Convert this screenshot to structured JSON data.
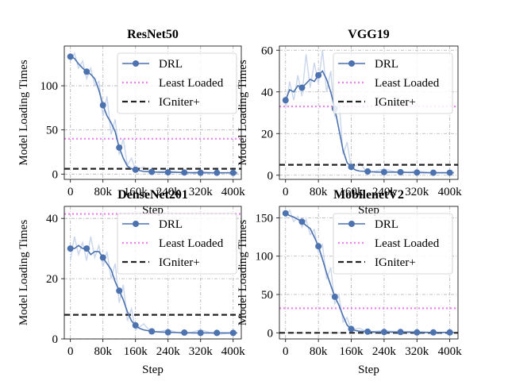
{
  "legend_labels": {
    "drl": "DRL",
    "least_loaded": "Least Loaded",
    "igniter": "IGniter+"
  },
  "colors": {
    "drl": "#4c72b0",
    "drl_raw": "#c9d6ec",
    "least_loaded": "#ee82ee",
    "igniter": "#222222",
    "grid": "#b0b0b0",
    "axis": "#000000"
  },
  "chart_data": [
    {
      "type": "line",
      "title": "ResNet50",
      "xlabel": "Step",
      "ylabel": "Model Loading Times",
      "xlim": [
        -15000,
        420000
      ],
      "ylim": [
        -6,
        145
      ],
      "xticks": [
        0,
        80000,
        160000,
        240000,
        320000,
        400000
      ],
      "xtick_labels": [
        "0",
        "80k",
        "160k",
        "240k",
        "320k",
        "400k"
      ],
      "yticks": [
        0,
        50,
        100
      ],
      "ytick_labels": [
        "0",
        "50",
        "100"
      ],
      "grid": true,
      "legend_position": "top-right",
      "series": [
        {
          "name": "DRL",
          "style": "line-with-circle-markers",
          "x": [
            0,
            10000,
            20000,
            30000,
            40000,
            50000,
            60000,
            70000,
            80000,
            90000,
            100000,
            110000,
            120000,
            130000,
            140000,
            150000,
            160000,
            170000,
            180000,
            200000,
            220000,
            240000,
            260000,
            280000,
            300000,
            320000,
            340000,
            360000,
            380000,
            400000,
            410000
          ],
          "y": [
            133,
            131,
            125,
            120,
            116,
            113,
            108,
            95,
            78,
            66,
            58,
            48,
            30,
            18,
            9,
            6,
            5,
            4,
            3,
            2.5,
            2,
            2,
            2,
            1.8,
            1.5,
            1.5,
            1.5,
            1.5,
            1.5,
            1.5,
            1.5
          ],
          "marker_x": [
            0,
            40000,
            80000,
            120000,
            160000,
            200000,
            240000,
            280000,
            320000,
            360000,
            400000
          ]
        },
        {
          "name": "DRL-raw",
          "style": "faint-noisy-line",
          "x": [
            0,
            10000,
            20000,
            30000,
            40000,
            50000,
            60000,
            70000,
            80000,
            90000,
            100000,
            110000,
            120000,
            130000,
            140000,
            150000,
            160000,
            180000,
            200000,
            240000,
            280000,
            320000,
            360000,
            400000
          ],
          "y": [
            128,
            137,
            120,
            128,
            108,
            120,
            100,
            105,
            65,
            88,
            45,
            62,
            22,
            40,
            10,
            18,
            5,
            8,
            2,
            4,
            1,
            3,
            1,
            2
          ]
        },
        {
          "name": "Least Loaded",
          "style": "dotted",
          "x": [
            -15000,
            420000
          ],
          "y": [
            40,
            40
          ]
        },
        {
          "name": "IGniter+",
          "style": "dashed",
          "x": [
            -15000,
            420000
          ],
          "y": [
            6,
            6
          ]
        }
      ]
    },
    {
      "type": "line",
      "title": "VGG19",
      "xlabel": "Step",
      "ylabel": "Model Loading Times",
      "xlim": [
        -15000,
        420000
      ],
      "ylim": [
        -2,
        62
      ],
      "xticks": [
        0,
        80000,
        160000,
        240000,
        320000,
        400000
      ],
      "xtick_labels": [
        "0",
        "80k",
        "160k",
        "240k",
        "320k",
        "400k"
      ],
      "yticks": [
        0,
        20,
        40,
        60
      ],
      "ytick_labels": [
        "0",
        "20",
        "40",
        "60"
      ],
      "grid": true,
      "legend_position": "top-right",
      "series": [
        {
          "name": "DRL",
          "style": "line-with-circle-markers",
          "x": [
            0,
            10000,
            20000,
            30000,
            40000,
            50000,
            60000,
            70000,
            80000,
            90000,
            100000,
            110000,
            120000,
            130000,
            140000,
            150000,
            160000,
            170000,
            180000,
            200000,
            220000,
            240000,
            260000,
            280000,
            300000,
            320000,
            340000,
            360000,
            380000,
            400000,
            410000
          ],
          "y": [
            36,
            41,
            40,
            43,
            42,
            44,
            46,
            45,
            48,
            50,
            46,
            40,
            32,
            22,
            12,
            6,
            4,
            2.5,
            2,
            1.8,
            1.5,
            1.5,
            1.5,
            1.5,
            1.3,
            1.3,
            1.2,
            1.2,
            1.2,
            1.2,
            1.2
          ],
          "marker_x": [
            0,
            40000,
            80000,
            120000,
            160000,
            200000,
            240000,
            280000,
            320000,
            360000,
            400000
          ]
        },
        {
          "name": "DRL-raw",
          "style": "faint-noisy-line",
          "x": [
            0,
            10000,
            20000,
            30000,
            40000,
            50000,
            60000,
            70000,
            80000,
            90000,
            100000,
            110000,
            120000,
            130000,
            140000,
            150000,
            160000,
            180000,
            200000,
            240000,
            280000,
            320000,
            360000,
            400000
          ],
          "y": [
            32,
            45,
            36,
            48,
            38,
            58,
            42,
            54,
            44,
            60,
            40,
            50,
            28,
            36,
            10,
            16,
            3,
            6,
            1,
            3,
            1,
            2,
            1,
            1
          ]
        },
        {
          "name": "Least Loaded",
          "style": "dotted",
          "x": [
            -15000,
            420000
          ],
          "y": [
            33,
            33
          ]
        },
        {
          "name": "IGniter+",
          "style": "dashed",
          "x": [
            -15000,
            420000
          ],
          "y": [
            5,
            5
          ]
        }
      ]
    },
    {
      "type": "line",
      "title": "DenseNet201",
      "xlabel": "Step",
      "ylabel": "Model Loading Times",
      "xlim": [
        -15000,
        420000
      ],
      "ylim": [
        0,
        44
      ],
      "xticks": [
        0,
        80000,
        160000,
        240000,
        320000,
        400000
      ],
      "xtick_labels": [
        "0",
        "80k",
        "160k",
        "240k",
        "320k",
        "400k"
      ],
      "yticks": [
        0,
        20,
        40
      ],
      "ytick_labels": [
        "0",
        "20",
        "40"
      ],
      "grid": true,
      "legend_position": "top-right",
      "series": [
        {
          "name": "DRL",
          "style": "line-with-circle-markers",
          "x": [
            0,
            10000,
            20000,
            30000,
            40000,
            50000,
            60000,
            70000,
            80000,
            90000,
            100000,
            110000,
            120000,
            130000,
            140000,
            150000,
            160000,
            170000,
            180000,
            200000,
            220000,
            240000,
            260000,
            280000,
            300000,
            320000,
            340000,
            360000,
            380000,
            400000,
            410000
          ],
          "y": [
            30,
            30,
            31,
            30,
            30,
            28,
            29,
            29,
            27,
            25,
            23,
            19,
            16,
            13,
            9,
            6,
            4.5,
            3.5,
            3,
            2.5,
            2.3,
            2.2,
            2.1,
            2.1,
            2,
            2,
            2,
            2,
            2,
            2,
            2
          ],
          "marker_x": [
            0,
            40000,
            80000,
            120000,
            160000,
            200000,
            240000,
            280000,
            320000,
            360000,
            400000
          ]
        },
        {
          "name": "DRL-raw",
          "style": "faint-noisy-line",
          "x": [
            0,
            10000,
            20000,
            30000,
            40000,
            50000,
            60000,
            70000,
            80000,
            90000,
            100000,
            110000,
            120000,
            130000,
            140000,
            150000,
            160000,
            180000,
            200000,
            240000,
            280000,
            320000,
            360000,
            400000
          ],
          "y": [
            26,
            34,
            28,
            32,
            26,
            34,
            27,
            31,
            24,
            29,
            20,
            25,
            12,
            18,
            6,
            10,
            3,
            5,
            2,
            3,
            1.5,
            3,
            1.5,
            2
          ]
        },
        {
          "name": "Least Loaded",
          "style": "dotted",
          "x": [
            -15000,
            420000
          ],
          "y": [
            41.5,
            41.5
          ]
        },
        {
          "name": "IGniter+",
          "style": "dashed",
          "x": [
            -15000,
            420000
          ],
          "y": [
            8,
            8
          ]
        }
      ]
    },
    {
      "type": "line",
      "title": "MobilenetV2",
      "xlabel": "Step",
      "ylabel": "Model Loading Times",
      "xlim": [
        -15000,
        420000
      ],
      "ylim": [
        -8,
        165
      ],
      "xticks": [
        0,
        80000,
        160000,
        240000,
        320000,
        400000
      ],
      "xtick_labels": [
        "0",
        "80k",
        "160k",
        "240k",
        "320k",
        "400k"
      ],
      "yticks": [
        0,
        50,
        100,
        150
      ],
      "ytick_labels": [
        "0",
        "50",
        "100",
        "150"
      ],
      "grid": true,
      "legend_position": "top-right",
      "series": [
        {
          "name": "DRL",
          "style": "line-with-circle-markers",
          "x": [
            0,
            10000,
            20000,
            30000,
            40000,
            50000,
            60000,
            70000,
            80000,
            90000,
            100000,
            110000,
            120000,
            130000,
            140000,
            150000,
            160000,
            170000,
            180000,
            200000,
            220000,
            240000,
            260000,
            280000,
            300000,
            320000,
            340000,
            360000,
            380000,
            400000,
            410000
          ],
          "y": [
            156,
            153,
            151,
            148,
            145,
            140,
            136,
            125,
            113,
            96,
            78,
            62,
            47,
            36,
            22,
            10,
            5,
            3,
            2,
            1.5,
            1,
            1,
            1,
            1,
            1,
            0.5,
            0.5,
            0.5,
            0.5,
            0.5,
            0.5
          ],
          "marker_x": [
            0,
            40000,
            80000,
            120000,
            160000,
            200000,
            240000,
            280000,
            320000,
            360000,
            400000
          ]
        },
        {
          "name": "DRL-raw",
          "style": "faint-noisy-line",
          "x": [
            0,
            10000,
            20000,
            30000,
            40000,
            50000,
            60000,
            70000,
            80000,
            90000,
            100000,
            110000,
            120000,
            130000,
            140000,
            150000,
            160000,
            180000,
            200000,
            240000,
            280000,
            320000,
            360000,
            400000
          ],
          "y": [
            150,
            160,
            145,
            152,
            138,
            148,
            128,
            135,
            105,
            115,
            70,
            85,
            38,
            48,
            14,
            20,
            4,
            6,
            1,
            3,
            1,
            2,
            0.5,
            1
          ]
        },
        {
          "name": "Least Loaded",
          "style": "dotted",
          "x": [
            -15000,
            420000
          ],
          "y": [
            32,
            32
          ]
        },
        {
          "name": "IGniter+",
          "style": "dashed",
          "x": [
            -15000,
            420000
          ],
          "y": [
            0,
            0
          ]
        }
      ]
    }
  ]
}
